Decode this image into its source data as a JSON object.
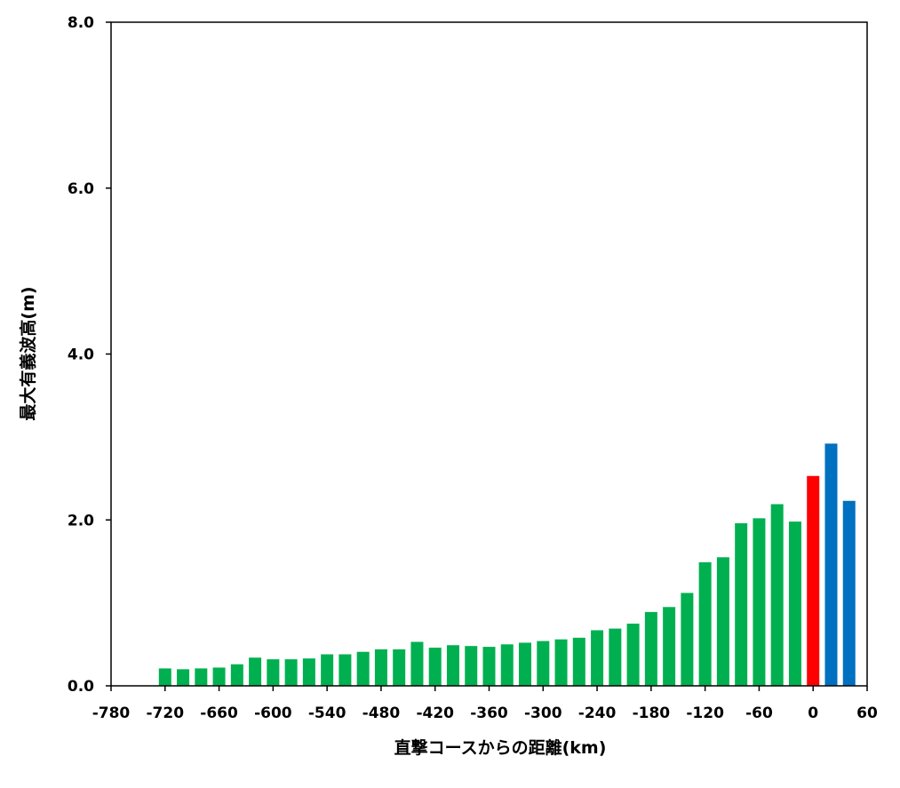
{
  "chart_data": {
    "type": "bar",
    "xlabel": "直撃コースからの距離(km)",
    "ylabel": "最大有義波高(m)",
    "xlim": [
      -780,
      60
    ],
    "ylim": [
      0,
      8
    ],
    "x_ticks": [
      "-780",
      "-720",
      "-660",
      "-600",
      "-540",
      "-480",
      "-420",
      "-360",
      "-300",
      "-240",
      "-180",
      "-120",
      "-60",
      "0",
      "60"
    ],
    "y_ticks": [
      "0.0",
      "2.0",
      "4.0",
      "6.0",
      "8.0"
    ],
    "grid": false,
    "colors": {
      "green": "#00b050",
      "red": "#ff0000",
      "blue": "#0070c0"
    },
    "bars": [
      {
        "x": -720,
        "value": 0.21,
        "color": "green"
      },
      {
        "x": -700,
        "value": 0.2,
        "color": "green"
      },
      {
        "x": -680,
        "value": 0.21,
        "color": "green"
      },
      {
        "x": -660,
        "value": 0.22,
        "color": "green"
      },
      {
        "x": -640,
        "value": 0.26,
        "color": "green"
      },
      {
        "x": -620,
        "value": 0.34,
        "color": "green"
      },
      {
        "x": -600,
        "value": 0.32,
        "color": "green"
      },
      {
        "x": -580,
        "value": 0.32,
        "color": "green"
      },
      {
        "x": -560,
        "value": 0.33,
        "color": "green"
      },
      {
        "x": -540,
        "value": 0.38,
        "color": "green"
      },
      {
        "x": -520,
        "value": 0.38,
        "color": "green"
      },
      {
        "x": -500,
        "value": 0.41,
        "color": "green"
      },
      {
        "x": -480,
        "value": 0.44,
        "color": "green"
      },
      {
        "x": -460,
        "value": 0.44,
        "color": "green"
      },
      {
        "x": -440,
        "value": 0.53,
        "color": "green"
      },
      {
        "x": -420,
        "value": 0.46,
        "color": "green"
      },
      {
        "x": -400,
        "value": 0.49,
        "color": "green"
      },
      {
        "x": -380,
        "value": 0.48,
        "color": "green"
      },
      {
        "x": -360,
        "value": 0.47,
        "color": "green"
      },
      {
        "x": -340,
        "value": 0.5,
        "color": "green"
      },
      {
        "x": -320,
        "value": 0.52,
        "color": "green"
      },
      {
        "x": -300,
        "value": 0.54,
        "color": "green"
      },
      {
        "x": -280,
        "value": 0.56,
        "color": "green"
      },
      {
        "x": -260,
        "value": 0.58,
        "color": "green"
      },
      {
        "x": -240,
        "value": 0.67,
        "color": "green"
      },
      {
        "x": -220,
        "value": 0.69,
        "color": "green"
      },
      {
        "x": -200,
        "value": 0.75,
        "color": "green"
      },
      {
        "x": -180,
        "value": 0.89,
        "color": "green"
      },
      {
        "x": -160,
        "value": 0.95,
        "color": "green"
      },
      {
        "x": -140,
        "value": 1.12,
        "color": "green"
      },
      {
        "x": -120,
        "value": 1.49,
        "color": "green"
      },
      {
        "x": -100,
        "value": 1.55,
        "color": "green"
      },
      {
        "x": -80,
        "value": 1.96,
        "color": "green"
      },
      {
        "x": -60,
        "value": 2.02,
        "color": "green"
      },
      {
        "x": -40,
        "value": 2.19,
        "color": "green"
      },
      {
        "x": -20,
        "value": 1.98,
        "color": "green"
      },
      {
        "x": 0,
        "value": 2.53,
        "color": "red"
      },
      {
        "x": 20,
        "value": 2.92,
        "color": "blue"
      },
      {
        "x": 40,
        "value": 2.23,
        "color": "blue"
      }
    ]
  }
}
